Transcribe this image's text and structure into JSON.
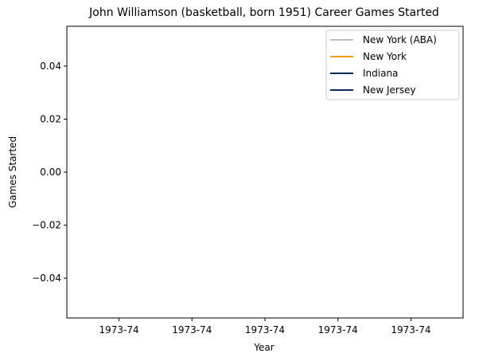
{
  "chart_data": {
    "type": "line",
    "title": "John Williamson (basketball, born 1951) Career Games Started",
    "xlabel": "Year",
    "ylabel": "Games Started",
    "x_ticks": [
      "1973-74",
      "1973-74",
      "1973-74",
      "1973-74",
      "1973-74"
    ],
    "y_ticks": [
      "0.04",
      "0.02",
      "0.00",
      "−0.02",
      "−0.04"
    ],
    "y_tick_values": [
      0.04,
      0.02,
      0.0,
      -0.02,
      -0.04
    ],
    "ylim": [
      -0.055,
      0.055
    ],
    "grid": false,
    "legend_position": "top-right",
    "series": [
      {
        "name": "New York (ABA)",
        "color": "#c0c0c0",
        "values": []
      },
      {
        "name": "New York",
        "color": "#f59a1b",
        "values": []
      },
      {
        "name": "Indiana",
        "color": "#0a2d57",
        "values": []
      },
      {
        "name": "New Jersey",
        "color": "#0a2d57",
        "values": []
      }
    ]
  }
}
